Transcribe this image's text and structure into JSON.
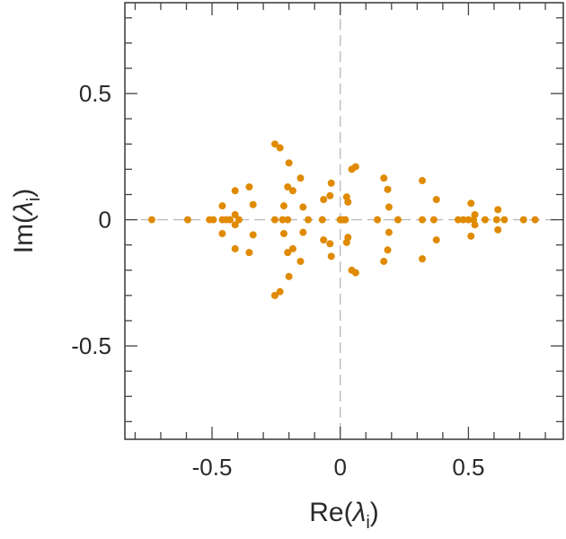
{
  "chart_data": {
    "type": "scatter",
    "title": "",
    "xlabel": {
      "main": "Re(",
      "symbol": "λ",
      "subscript": "i",
      "close": ")"
    },
    "ylabel": {
      "main": "Im(",
      "symbol": "λ",
      "subscript": "i",
      "close": ")"
    },
    "xlim": [
      -0.84,
      0.87
    ],
    "ylim": [
      -0.87,
      0.86
    ],
    "x_ticks": [
      -0.5,
      0,
      0.5
    ],
    "x_tick_labels": [
      "-0.5",
      "0",
      "0.5"
    ],
    "y_ticks": [
      -0.5,
      0,
      0.5
    ],
    "y_tick_labels": [
      "-0.5",
      "0",
      "0.5"
    ],
    "minor_step": 0.1,
    "reference_lines": {
      "x": 0,
      "y": 0,
      "style": "dashed"
    },
    "marker_color": "#e08a00",
    "points": [
      [
        -0.735,
        0
      ],
      [
        -0.595,
        0
      ],
      [
        -0.51,
        0
      ],
      [
        -0.495,
        0
      ],
      [
        -0.46,
        0
      ],
      [
        -0.445,
        0
      ],
      [
        -0.43,
        0
      ],
      [
        -0.395,
        0
      ],
      [
        -0.46,
        0.055
      ],
      [
        -0.46,
        -0.055
      ],
      [
        -0.41,
        0.115
      ],
      [
        -0.41,
        -0.115
      ],
      [
        -0.41,
        0.02
      ],
      [
        -0.41,
        -0.02
      ],
      [
        -0.355,
        0.13
      ],
      [
        -0.355,
        -0.13
      ],
      [
        -0.34,
        0.06
      ],
      [
        -0.34,
        -0.06
      ],
      [
        -0.255,
        0
      ],
      [
        -0.225,
        0
      ],
      [
        -0.205,
        0
      ],
      [
        -0.255,
        0.3
      ],
      [
        -0.255,
        -0.3
      ],
      [
        -0.235,
        0.285
      ],
      [
        -0.235,
        -0.285
      ],
      [
        -0.2,
        0.225
      ],
      [
        -0.2,
        -0.225
      ],
      [
        -0.205,
        0.13
      ],
      [
        -0.205,
        -0.13
      ],
      [
        -0.185,
        0.115
      ],
      [
        -0.185,
        -0.115
      ],
      [
        -0.22,
        0.055
      ],
      [
        -0.22,
        -0.055
      ],
      [
        -0.145,
        0.05
      ],
      [
        -0.145,
        -0.05
      ],
      [
        -0.155,
        0.165
      ],
      [
        -0.155,
        -0.165
      ],
      [
        -0.065,
        0.08
      ],
      [
        -0.065,
        -0.08
      ],
      [
        -0.07,
        0
      ],
      [
        -0.125,
        0
      ],
      [
        -0.035,
        0.145
      ],
      [
        -0.035,
        -0.145
      ],
      [
        -0.04,
        0.095
      ],
      [
        -0.04,
        -0.095
      ],
      [
        0,
        0
      ],
      [
        0.01,
        0
      ],
      [
        0.02,
        0
      ],
      [
        0.025,
        0.09
      ],
      [
        0.025,
        -0.09
      ],
      [
        0.03,
        0.07
      ],
      [
        0.03,
        -0.07
      ],
      [
        0.045,
        0.2
      ],
      [
        0.045,
        -0.2
      ],
      [
        0.06,
        0.21
      ],
      [
        0.06,
        -0.21
      ],
      [
        0.145,
        0
      ],
      [
        0.17,
        0.165
      ],
      [
        0.17,
        -0.165
      ],
      [
        0.185,
        0.12
      ],
      [
        0.185,
        -0.12
      ],
      [
        0.19,
        0.05
      ],
      [
        0.19,
        -0.05
      ],
      [
        0.225,
        0
      ],
      [
        0.32,
        0.155
      ],
      [
        0.32,
        -0.155
      ],
      [
        0.32,
        0
      ],
      [
        0.365,
        0
      ],
      [
        0.375,
        0.08
      ],
      [
        0.375,
        -0.08
      ],
      [
        0.46,
        0
      ],
      [
        0.48,
        0
      ],
      [
        0.5,
        0
      ],
      [
        0.51,
        0.065
      ],
      [
        0.51,
        -0.065
      ],
      [
        0.52,
        0
      ],
      [
        0.525,
        0.02
      ],
      [
        0.525,
        -0.02
      ],
      [
        0.565,
        0
      ],
      [
        0.61,
        0
      ],
      [
        0.615,
        0.04
      ],
      [
        0.615,
        -0.04
      ],
      [
        0.64,
        0
      ],
      [
        0.715,
        0
      ],
      [
        0.76,
        0
      ]
    ]
  }
}
